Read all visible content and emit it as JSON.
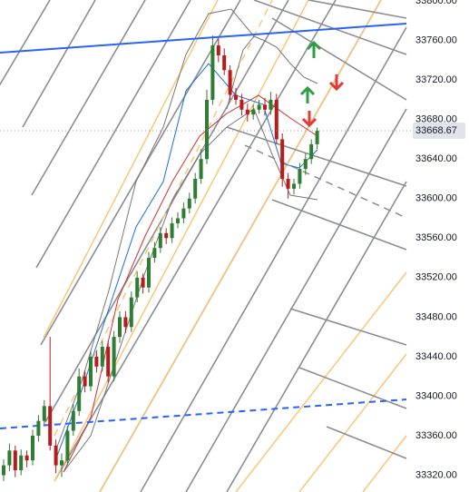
{
  "chart_data": {
    "type": "candlestick",
    "ylim": [
      33303,
      33801
    ],
    "yticks": [
      {
        "value": 33800,
        "label": "33800.00"
      },
      {
        "value": 33760,
        "label": "33760.00"
      },
      {
        "value": 33720,
        "label": "33720.00"
      },
      {
        "value": 33680,
        "label": "33680.00"
      },
      {
        "value": 33640,
        "label": "33640.00"
      },
      {
        "value": 33600,
        "label": "33600.00"
      },
      {
        "value": 33560,
        "label": "33560.00"
      },
      {
        "value": 33520,
        "label": "33520.00"
      },
      {
        "value": 33480,
        "label": "33480.00"
      },
      {
        "value": 33440,
        "label": "33440.00"
      },
      {
        "value": 33400,
        "label": "33400.00"
      },
      {
        "value": 33360,
        "label": "33360.00"
      },
      {
        "value": 33320,
        "label": "33320.00"
      }
    ],
    "last_price": 33668.67,
    "up_color": "#2e7d32",
    "down_color": "#b71c1c",
    "open": [
      33320,
      33330,
      33345,
      33325,
      33340,
      33335,
      33360,
      33375,
      33390,
      33350,
      33330,
      33335,
      33365,
      33385,
      33420,
      33410,
      33440,
      33430,
      33450,
      33420,
      33460,
      33480,
      33470,
      33500,
      33520,
      33510,
      33540,
      33550,
      33565,
      33560,
      33575,
      33580,
      33590,
      33600,
      33620,
      33640,
      33700,
      33755,
      33745,
      33730,
      33705,
      33700,
      33690,
      33685,
      33690,
      33695,
      33690,
      33700,
      33660,
      33620,
      33610,
      33615,
      33630,
      33640,
      33655
    ],
    "high": [
      33336,
      33352,
      33350,
      33346,
      33345,
      33366,
      33381,
      33396,
      33460,
      33356,
      33342,
      33370,
      33392,
      33428,
      33426,
      33446,
      33446,
      33456,
      33456,
      33466,
      33486,
      33486,
      33506,
      33526,
      33524,
      33546,
      33556,
      33571,
      33570,
      33581,
      33586,
      33596,
      33606,
      33626,
      33650,
      33710,
      33765,
      33762,
      33752,
      33735,
      33712,
      33706,
      33696,
      33695,
      33700,
      33702,
      33708,
      33706,
      33666,
      33626,
      33620,
      33636,
      33646,
      33660,
      33672
    ],
    "low": [
      33314,
      33324,
      33318,
      33320,
      33328,
      33330,
      33354,
      33370,
      33345,
      33322,
      33318,
      33330,
      33360,
      33380,
      33404,
      33405,
      33424,
      33425,
      33414,
      33415,
      33454,
      33464,
      33465,
      33495,
      33504,
      33505,
      33535,
      33545,
      33554,
      33555,
      33570,
      33575,
      33585,
      33595,
      33615,
      33635,
      33695,
      33738,
      33725,
      33700,
      33695,
      33684,
      33678,
      33680,
      33686,
      33684,
      33685,
      33655,
      33612,
      33600,
      33604,
      33610,
      33624,
      33635,
      33650
    ],
    "close": [
      33330,
      33345,
      33325,
      33340,
      33335,
      33360,
      33375,
      33390,
      33350,
      33330,
      33335,
      33365,
      33385,
      33420,
      33410,
      33440,
      33430,
      33450,
      33420,
      33460,
      33480,
      33470,
      33500,
      33520,
      33510,
      33540,
      33550,
      33565,
      33560,
      33575,
      33580,
      33590,
      33600,
      33620,
      33640,
      33700,
      33755,
      33745,
      33730,
      33705,
      33700,
      33690,
      33685,
      33690,
      33695,
      33690,
      33700,
      33660,
      33620,
      33610,
      33615,
      33630,
      33640,
      33655,
      33668.67
    ]
  }
}
